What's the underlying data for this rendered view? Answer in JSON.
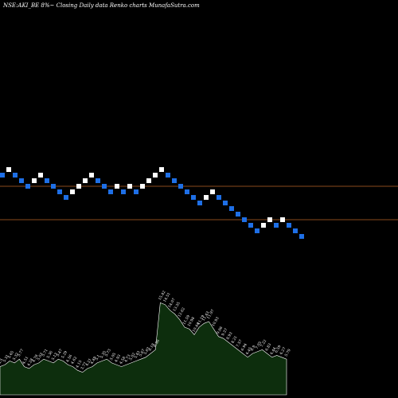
{
  "title": "NSE:AKI_BE 8%~  Closing Daily data  Renko  charts MunafaSutra.com",
  "colors": {
    "background": "#000000",
    "up_brick": "#ffffff",
    "down_brick": "#1e6fe6",
    "hline": "#8a4a1c",
    "volume_fill": "#0d2e0d",
    "volume_stroke": "#ffffff"
  },
  "chart_data": [
    {
      "type": "renko",
      "bricks": [
        {
          "level": 22,
          "dir": "down"
        },
        {
          "level": 23,
          "dir": "up"
        },
        {
          "level": 22,
          "dir": "down"
        },
        {
          "level": 21,
          "dir": "down"
        },
        {
          "level": 20,
          "dir": "down"
        },
        {
          "level": 21,
          "dir": "up"
        },
        {
          "level": 22,
          "dir": "up"
        },
        {
          "level": 21,
          "dir": "down"
        },
        {
          "level": 20,
          "dir": "down"
        },
        {
          "level": 19,
          "dir": "down"
        },
        {
          "level": 18,
          "dir": "down"
        },
        {
          "level": 19,
          "dir": "up"
        },
        {
          "level": 20,
          "dir": "up"
        },
        {
          "level": 21,
          "dir": "up"
        },
        {
          "level": 22,
          "dir": "up"
        },
        {
          "level": 21,
          "dir": "down"
        },
        {
          "level": 20,
          "dir": "down"
        },
        {
          "level": 19,
          "dir": "down"
        },
        {
          "level": 20,
          "dir": "up"
        },
        {
          "level": 19,
          "dir": "down"
        },
        {
          "level": 20,
          "dir": "up"
        },
        {
          "level": 19,
          "dir": "down"
        },
        {
          "level": 20,
          "dir": "up"
        },
        {
          "level": 21,
          "dir": "up"
        },
        {
          "level": 22,
          "dir": "up"
        },
        {
          "level": 23,
          "dir": "up"
        },
        {
          "level": 22,
          "dir": "down"
        },
        {
          "level": 21,
          "dir": "down"
        },
        {
          "level": 20,
          "dir": "down"
        },
        {
          "level": 19,
          "dir": "down"
        },
        {
          "level": 18,
          "dir": "down"
        },
        {
          "level": 17,
          "dir": "down"
        },
        {
          "level": 18,
          "dir": "up"
        },
        {
          "level": 19,
          "dir": "up"
        },
        {
          "level": 18,
          "dir": "down"
        },
        {
          "level": 17,
          "dir": "down"
        },
        {
          "level": 16,
          "dir": "down"
        },
        {
          "level": 15,
          "dir": "down"
        },
        {
          "level": 14,
          "dir": "down"
        },
        {
          "level": 13,
          "dir": "down"
        },
        {
          "level": 12,
          "dir": "down"
        },
        {
          "level": 13,
          "dir": "up"
        },
        {
          "level": 14,
          "dir": "up"
        },
        {
          "level": 13,
          "dir": "down"
        },
        {
          "level": 14,
          "dir": "up"
        },
        {
          "level": 13,
          "dir": "down"
        },
        {
          "level": 12,
          "dir": "down"
        },
        {
          "level": 11,
          "dir": "down"
        }
      ],
      "reference_lines": [
        20,
        14
      ],
      "ylim": [
        10,
        24
      ]
    },
    {
      "type": "area",
      "values": [
        3.0,
        3.2,
        3.6,
        3.4,
        3.8,
        3.0,
        2.8,
        3.2,
        3.4,
        3.8,
        3.6,
        3.4,
        3.8,
        3.6,
        3.2,
        3.0,
        2.6,
        2.4,
        2.8,
        3.0,
        3.4,
        3.6,
        3.8,
        3.4,
        3.2,
        3.0,
        3.2,
        3.4,
        3.6,
        3.8,
        4.0,
        4.4,
        4.8,
        9.8,
        9.6,
        9.0,
        8.6,
        8.0,
        7.2,
        7.0,
        6.4,
        7.2,
        7.6,
        7.8,
        7.0,
        6.2,
        6.0,
        5.6,
        5.2,
        4.8,
        4.4,
        4.0,
        4.4,
        4.6,
        4.8,
        4.4,
        4.0,
        4.2,
        4.0,
        3.8
      ],
      "labels": [
        "4.5",
        "5.31",
        "5.65",
        "5.32",
        "5.77",
        "4.51",
        "4.28",
        "4.78",
        "5.03",
        "5.71",
        "5.36",
        "5.13",
        "5.47",
        "5.29",
        "4.56",
        "4.62",
        "4.15",
        "3.77",
        "4.21",
        "4.49",
        "5.1",
        "5.35",
        "5.73",
        "5.05",
        "4.93",
        "4.58",
        "4.73",
        "5.02",
        "5.43",
        "5.67",
        "5.83",
        "6.18",
        "6.56",
        "15.42",
        "14.51",
        "14.07",
        "13.35",
        "12.62",
        "11.59",
        "10.98",
        "10.44",
        "11.19",
        "11.43",
        "11.97",
        "10.93",
        "9.86",
        "9.37",
        "8.93",
        "8.21",
        "7.57",
        "6.94",
        "6.45",
        "6.9",
        "7.05",
        "7.22",
        "6.83",
        "6.44",
        "6.59",
        "6.27",
        "5.79"
      ],
      "ylim": [
        0,
        10
      ]
    }
  ]
}
